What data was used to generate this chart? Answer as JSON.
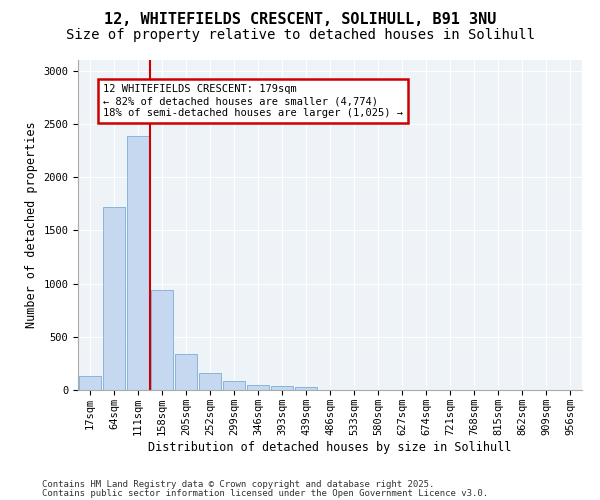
{
  "title_line1": "12, WHITEFIELDS CRESCENT, SOLIHULL, B91 3NU",
  "title_line2": "Size of property relative to detached houses in Solihull",
  "xlabel": "Distribution of detached houses by size in Solihull",
  "ylabel": "Number of detached properties",
  "categories": [
    "17sqm",
    "64sqm",
    "111sqm",
    "158sqm",
    "205sqm",
    "252sqm",
    "299sqm",
    "346sqm",
    "393sqm",
    "439sqm",
    "486sqm",
    "533sqm",
    "580sqm",
    "627sqm",
    "674sqm",
    "721sqm",
    "768sqm",
    "815sqm",
    "862sqm",
    "909sqm",
    "956sqm"
  ],
  "values": [
    130,
    1720,
    2390,
    940,
    340,
    160,
    85,
    50,
    40,
    25,
    0,
    0,
    0,
    0,
    0,
    0,
    0,
    0,
    0,
    0,
    0
  ],
  "bar_color": "#c5d8f0",
  "bar_edge_color": "#7aaed6",
  "red_line_index": 3,
  "annotation_title": "12 WHITEFIELDS CRESCENT: 179sqm",
  "annotation_line2": "← 82% of detached houses are smaller (4,774)",
  "annotation_line3": "18% of semi-detached houses are larger (1,025) →",
  "annotation_box_color": "#cc0000",
  "ylim": [
    0,
    3100
  ],
  "yticks": [
    0,
    500,
    1000,
    1500,
    2000,
    2500,
    3000
  ],
  "footer_line1": "Contains HM Land Registry data © Crown copyright and database right 2025.",
  "footer_line2": "Contains public sector information licensed under the Open Government Licence v3.0.",
  "plot_bg_color": "#eef3f8",
  "title_fontsize": 11,
  "subtitle_fontsize": 10,
  "tick_fontsize": 7.5,
  "label_fontsize": 8.5,
  "footer_fontsize": 6.5,
  "annotation_fontsize": 7.5
}
